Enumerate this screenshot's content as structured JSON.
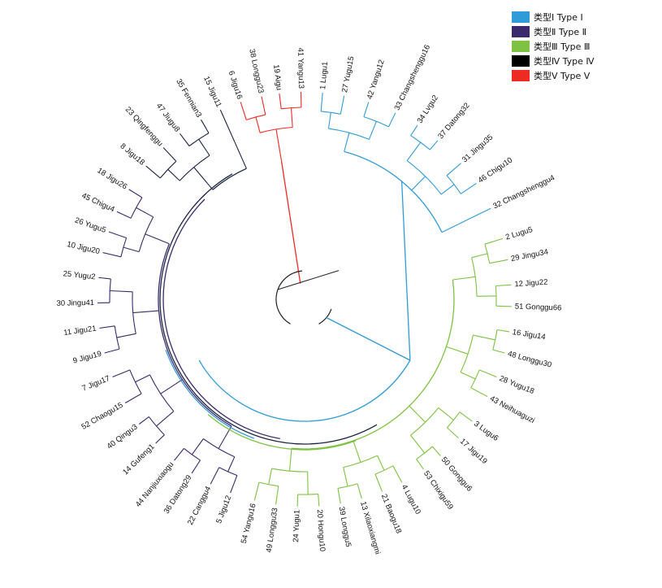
{
  "legend": [
    {
      "label": "类型Ⅰ Type Ⅰ",
      "color": "#2f9bd8"
    },
    {
      "label": "类型Ⅱ Type Ⅱ",
      "color": "#3b2a6b"
    },
    {
      "label": "类型Ⅲ Type Ⅲ",
      "color": "#7dc242"
    },
    {
      "label": "类型Ⅳ Type Ⅳ",
      "color": "#000000"
    },
    {
      "label": "类型Ⅴ Type Ⅴ",
      "color": "#ee2a24"
    }
  ],
  "clusters": [
    {
      "type": "Type I",
      "color": "#2f9bd8",
      "taxa": [
        {
          "label": "1 Lugu1",
          "angle": -85
        },
        {
          "label": "27 Yugu15",
          "angle": -79
        },
        {
          "label": "42 Yangu12",
          "angle": -72
        },
        {
          "label": "33 Changshenggu16",
          "angle": -64
        },
        {
          "label": "34 Lvgu2",
          "angle": -57
        },
        {
          "label": "37 Datong32",
          "angle": -50
        },
        {
          "label": "31 Jingu35",
          "angle": -41
        },
        {
          "label": "46 Chigu10",
          "angle": -34
        },
        {
          "label": "32 Changshenggu4",
          "angle": -26
        }
      ]
    },
    {
      "type": "Type III",
      "color": "#7dc242",
      "taxa": [
        {
          "label": "2 Lugu5",
          "angle": -17
        },
        {
          "label": "29 Jingu34",
          "angle": -11
        },
        {
          "label": "12 Jigu22",
          "angle": -4
        },
        {
          "label": "51 Gonggu66",
          "angle": 2
        },
        {
          "label": "16 Jigu14",
          "angle": 9
        },
        {
          "label": "48 Longgu30",
          "angle": 15
        },
        {
          "label": "28 Yugu18",
          "angle": 22
        },
        {
          "label": "43 Neihuaguzi",
          "angle": 28
        },
        {
          "label": "3 Lugu6",
          "angle": 36
        },
        {
          "label": "17 Jigu19",
          "angle": 42
        },
        {
          "label": "50 Gonggu6",
          "angle": 49
        },
        {
          "label": "53 Chixigu59",
          "angle": 55
        },
        {
          "label": "4 Lugu10",
          "angle": 62
        },
        {
          "label": "21 Baogu18",
          "angle": 68
        },
        {
          "label": "13 Xilaoxiangmi",
          "angle": 74
        },
        {
          "label": "39 Longgu5",
          "angle": 80
        },
        {
          "label": "20 Hongu10",
          "angle": 86
        },
        {
          "label": "24 Yugu1",
          "angle": 92
        },
        {
          "label": "49 Longgu33",
          "angle": 98
        },
        {
          "label": "54 Yangu16",
          "angle": 104
        }
      ]
    },
    {
      "type": "Type II",
      "color": "#3b2a6b",
      "taxa": [
        {
          "label": "5 Jigu12",
          "angle": 111
        },
        {
          "label": "22 Canggu4",
          "angle": 117
        },
        {
          "label": "36 Datong29",
          "angle": 123
        },
        {
          "label": "44 Nanjiuxiaogu",
          "angle": 129
        },
        {
          "label": "14 Gufeng1",
          "angle": 136
        },
        {
          "label": "40 Qingu3",
          "angle": 143
        },
        {
          "label": "52 Chaogu15",
          "angle": 150
        },
        {
          "label": "7 Jigu17",
          "angle": 158
        },
        {
          "label": "9 Jigu19",
          "angle": 165
        },
        {
          "label": "11 Jigu21",
          "angle": 172
        },
        {
          "label": "30 Jingu41",
          "angle": 179
        },
        {
          "label": "25 Yugu2",
          "angle": 186
        },
        {
          "label": "10 Jigu20",
          "angle": 193
        },
        {
          "label": "26 Yugu5",
          "angle": 199
        },
        {
          "label": "45 Chigu4",
          "angle": 205
        },
        {
          "label": "18 Jigu26",
          "angle": 212
        }
      ]
    },
    {
      "type": "Type IV",
      "color": "#1a2442",
      "taxa": [
        {
          "label": "8 Jigu18",
          "angle": 220
        },
        {
          "label": "23 Qingfenggu",
          "angle": 227
        },
        {
          "label": "47 Jiugu8",
          "angle": 233
        },
        {
          "label": "35 Fennian3",
          "angle": 240
        },
        {
          "label": "15 Jigu11",
          "angle": 246
        }
      ]
    },
    {
      "type": "Type V",
      "color": "#ee2a24",
      "taxa": [
        {
          "label": "6 Jigu16",
          "angle": 252
        },
        {
          "label": "38 Longgu23",
          "angle": 258
        },
        {
          "label": "19 Aigu",
          "angle": 263
        },
        {
          "label": "41 Yangu13",
          "angle": 269
        }
      ]
    }
  ]
}
